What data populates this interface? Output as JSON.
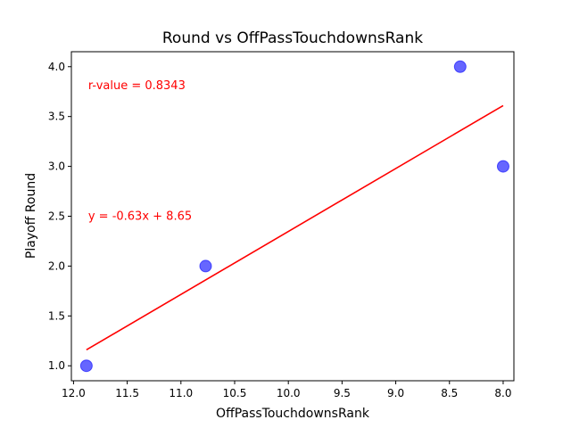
{
  "chart_data": {
    "type": "scatter",
    "title": "Round vs OffPassTouchdownsRank",
    "xlabel": "OffPassTouchdownsRank",
    "ylabel": "Playoff Round",
    "x_inverted": true,
    "xlim": [
      12.02,
      7.9
    ],
    "ylim": [
      0.85,
      4.15
    ],
    "x_ticks": [
      12.0,
      11.5,
      11.0,
      10.5,
      10.0,
      9.5,
      9.0,
      8.5,
      8.0
    ],
    "x_tick_labels": [
      "12.0",
      "11.5",
      "11.0",
      "10.5",
      "10.0",
      "9.5",
      "9.0",
      "8.5",
      "8.0"
    ],
    "y_ticks": [
      1.0,
      1.5,
      2.0,
      2.5,
      3.0,
      3.5,
      4.0
    ],
    "y_tick_labels": [
      "1.0",
      "1.5",
      "2.0",
      "2.5",
      "3.0",
      "3.5",
      "4.0"
    ],
    "points": [
      {
        "x": 11.88,
        "y": 1.0
      },
      {
        "x": 10.77,
        "y": 2.0
      },
      {
        "x": 8.4,
        "y": 4.0
      },
      {
        "x": 8.0,
        "y": 3.0
      }
    ],
    "point_color": "#0000ff",
    "point_alpha": 0.6,
    "fit_line": {
      "x_start": 11.88,
      "y_start": 1.16,
      "x_end": 8.0,
      "y_end": 3.61,
      "color": "#ff0000"
    },
    "annotations": [
      {
        "text": "r-value = 0.8343",
        "x": 11.88,
        "y": 3.82,
        "color": "#ff0000"
      },
      {
        "text": "y = -0.63x + 8.65",
        "x": 11.88,
        "y": 2.51,
        "color": "#ff0000"
      }
    ],
    "grid": false,
    "legend": "none"
  }
}
